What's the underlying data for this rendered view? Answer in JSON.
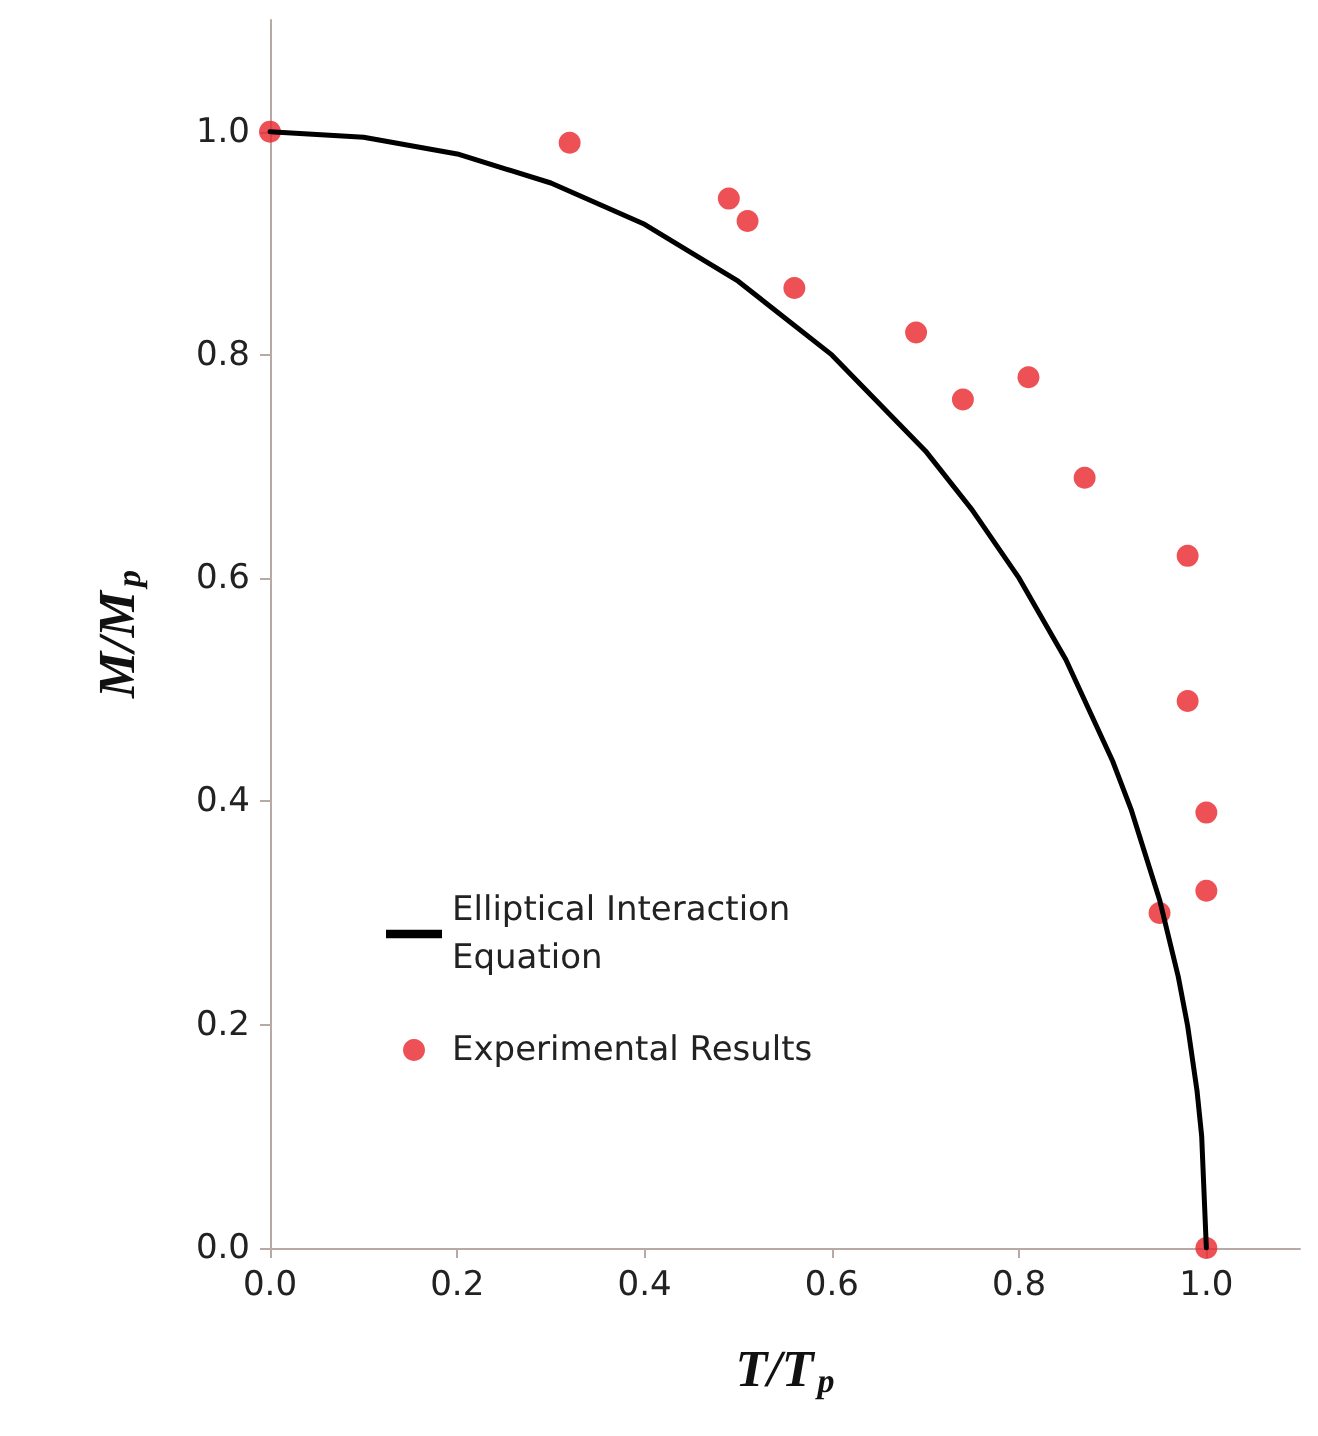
{
  "chart_data": {
    "type": "scatter",
    "xlabel": "T/T$_{p}$",
    "ylabel": "M/M$_{p}$",
    "xlim": [
      0,
      1.1
    ],
    "ylim": [
      0,
      1.1
    ],
    "xticks": [
      {
        "value": 0,
        "label": "0.0"
      },
      {
        "value": 0.2,
        "label": "0.2"
      },
      {
        "value": 0.4,
        "label": "0.4"
      },
      {
        "value": 0.6,
        "label": "0.6"
      },
      {
        "value": 0.8,
        "label": "0.8"
      },
      {
        "value": 1,
        "label": "1.0"
      }
    ],
    "yticks": [
      {
        "value": 0,
        "label": "0.0"
      },
      {
        "value": 0.2,
        "label": "0.2"
      },
      {
        "value": 0.4,
        "label": "0.4"
      },
      {
        "value": 0.6,
        "label": "0.6"
      },
      {
        "value": 0.8,
        "label": "0.8"
      },
      {
        "value": 1,
        "label": "1.0"
      }
    ],
    "grid": false,
    "legend": "left",
    "series": [
      {
        "name": "Elliptical Interaction Equation",
        "type": "line",
        "color": "#000000",
        "marker": "none",
        "line_style": "solid",
        "x": [
          0,
          0.1,
          0.2,
          0.3,
          0.4,
          0.5,
          0.6,
          0.7,
          0.75,
          0.8,
          0.85,
          0.9,
          0.92,
          0.95,
          0.97,
          0.98,
          0.99,
          0.995,
          1.0
        ],
        "values": [
          1,
          0.995,
          0.98,
          0.954,
          0.917,
          0.866,
          0.8,
          0.714,
          0.661,
          0.6,
          0.527,
          0.436,
          0.392,
          0.312,
          0.243,
          0.199,
          0.141,
          0.1,
          0
        ]
      },
      {
        "name": "Experimental Results",
        "type": "scatter",
        "color": "#e8262b",
        "marker": "circle",
        "x": [
          0,
          0.32,
          0.49,
          0.51,
          0.56,
          0.69,
          0.74,
          0.81,
          0.87,
          0.98,
          0.98,
          1.0,
          1.0,
          0.95,
          1.0
        ],
        "values": [
          1.0,
          0.99,
          0.94,
          0.92,
          0.86,
          0.82,
          0.76,
          0.78,
          0.69,
          0.62,
          0.49,
          0.39,
          0.32,
          0.3,
          0
        ]
      }
    ]
  }
}
